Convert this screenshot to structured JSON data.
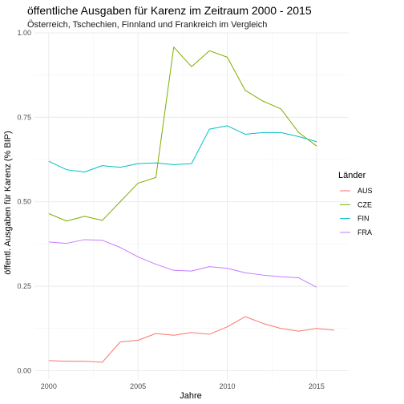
{
  "chart_data": {
    "type": "line",
    "title": "öffentliche Ausgaben für Karenz im Zeitraum 2000 - 2015",
    "subtitle": "Österreich, Tschechien, Finnland und Frankreich im Vergleich",
    "xlabel": "Jahre",
    "ylabel": "öffentl. Ausgaben für Karenz (% BIP)",
    "xlim": [
      1999.2,
      2016.8
    ],
    "ylim": [
      -0.025,
      1.0
    ],
    "x_ticks": [
      2000,
      2005,
      2010,
      2015
    ],
    "x_tick_labels": [
      "2000",
      "2005",
      "2010",
      "2015"
    ],
    "y_ticks": [
      0.0,
      0.25,
      0.5,
      0.75,
      1.0
    ],
    "y_tick_labels": [
      "0.00",
      "0.25",
      "0.50",
      "0.75",
      "1.00"
    ],
    "grid": true,
    "legend_title": "Länder",
    "legend_position": "right",
    "series": [
      {
        "name": "AUS",
        "color": "#F8766D",
        "x": [
          2000,
          2001,
          2002,
          2003,
          2004,
          2005,
          2006,
          2007,
          2008,
          2009,
          2010,
          2011,
          2012,
          2013,
          2014,
          2015,
          2016
        ],
        "y": [
          0.03,
          0.028,
          0.028,
          0.025,
          0.085,
          0.09,
          0.11,
          0.105,
          0.113,
          0.108,
          0.13,
          0.16,
          0.14,
          0.125,
          0.117,
          0.125,
          0.12
        ]
      },
      {
        "name": "CZE",
        "color": "#7CAE00",
        "x": [
          2000,
          2001,
          2002,
          2003,
          2004,
          2005,
          2006,
          2007,
          2008,
          2009,
          2010,
          2011,
          2012,
          2013,
          2014,
          2015
        ],
        "y": [
          0.465,
          0.443,
          0.457,
          0.445,
          0.5,
          0.555,
          0.572,
          0.958,
          0.9,
          0.947,
          0.928,
          0.83,
          0.798,
          0.775,
          0.705,
          0.665
        ]
      },
      {
        "name": "FIN",
        "color": "#00BFC4",
        "x": [
          2000,
          2001,
          2002,
          2003,
          2004,
          2005,
          2006,
          2007,
          2008,
          2009,
          2010,
          2011,
          2012,
          2013,
          2014,
          2015
        ],
        "y": [
          0.62,
          0.595,
          0.588,
          0.607,
          0.602,
          0.613,
          0.615,
          0.61,
          0.613,
          0.715,
          0.725,
          0.7,
          0.705,
          0.705,
          0.693,
          0.678
        ]
      },
      {
        "name": "FRA",
        "color": "#C77CFF",
        "x": [
          2000,
          2001,
          2002,
          2003,
          2004,
          2005,
          2006,
          2007,
          2008,
          2009,
          2010,
          2011,
          2012,
          2013,
          2014,
          2015
        ],
        "y": [
          0.381,
          0.377,
          0.388,
          0.386,
          0.365,
          0.337,
          0.315,
          0.297,
          0.295,
          0.308,
          0.303,
          0.29,
          0.283,
          0.278,
          0.275,
          0.247
        ]
      }
    ]
  }
}
